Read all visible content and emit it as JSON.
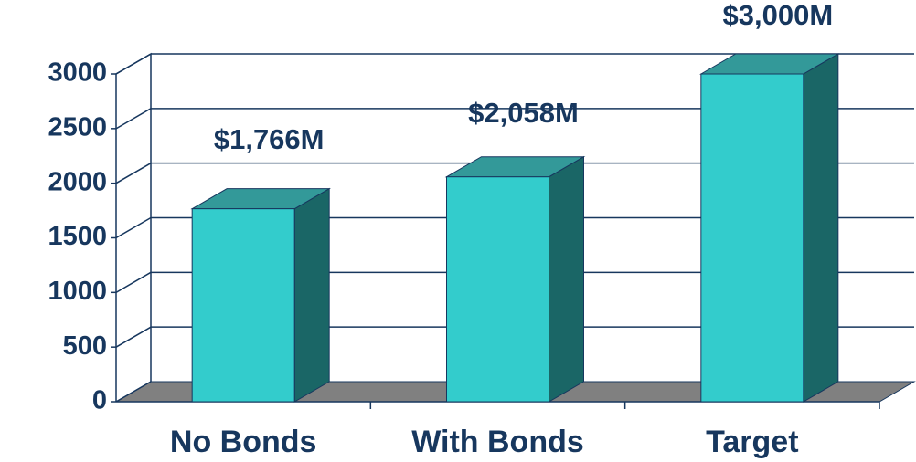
{
  "chart_data": {
    "type": "bar3d",
    "categories": [
      "No Bonds",
      "With Bonds",
      "Target"
    ],
    "values": [
      1766,
      2058,
      3000
    ],
    "value_labels": [
      "$1,766M",
      "$2,058M",
      "$3,000M"
    ],
    "color": "#33cccc",
    "ylim": [
      0,
      3000
    ],
    "yticks": [
      0,
      500,
      1000,
      1500,
      2000,
      2500,
      3000
    ],
    "grid": true
  }
}
